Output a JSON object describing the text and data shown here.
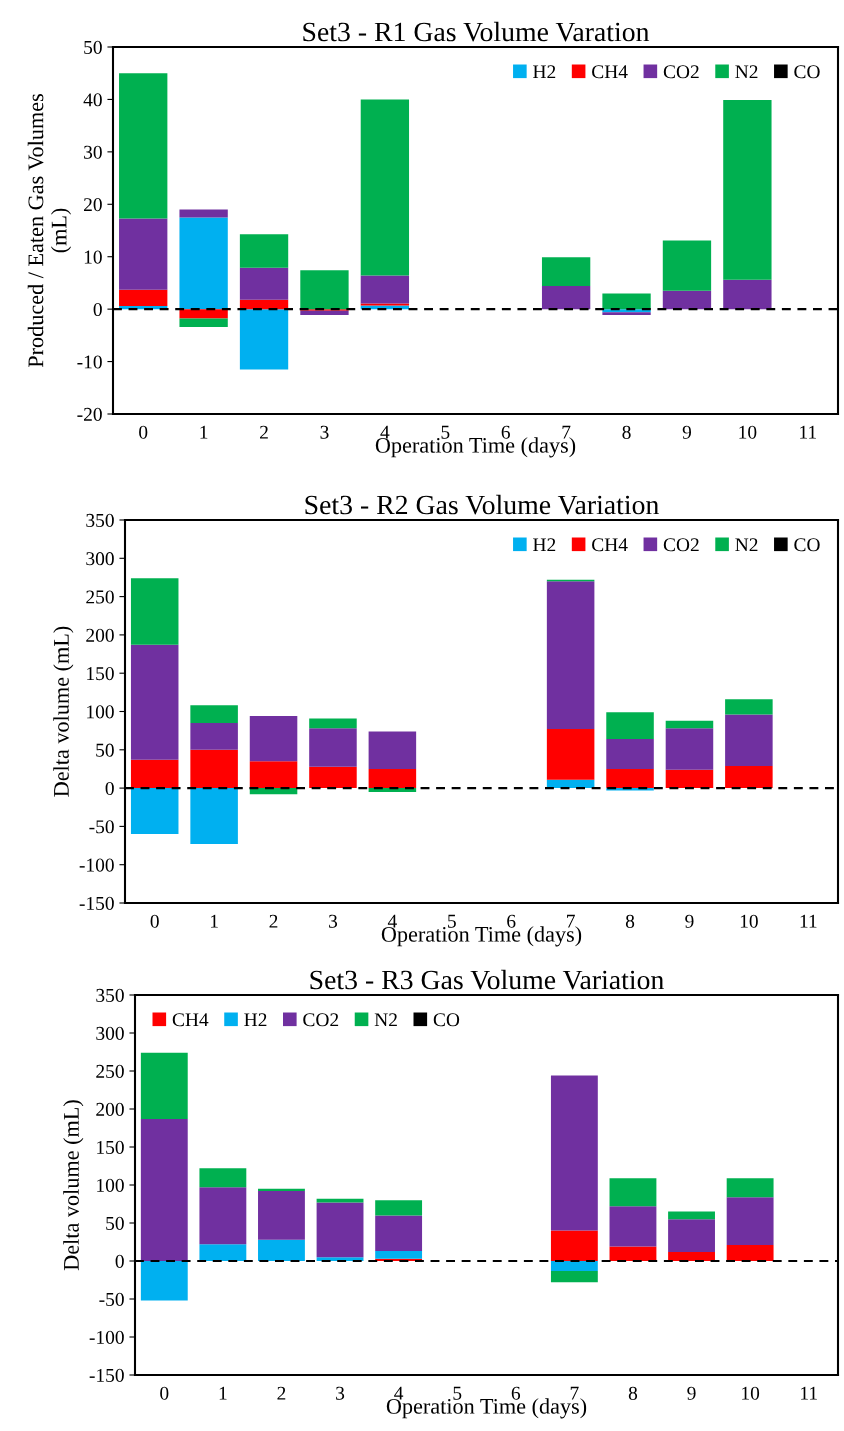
{
  "chart_data": [
    {
      "type": "bar",
      "stacked": true,
      "title": "Set3 - R1 Gas Volume Varation",
      "xlabel": "Operation Time (days)",
      "ylabel": "Produced / Eaten Gas Volumes\n(mL)",
      "categories": [
        "0",
        "1",
        "2",
        "3",
        "4",
        "5",
        "6",
        "7",
        "8",
        "9",
        "10",
        "11"
      ],
      "series": [
        {
          "name": "H2",
          "color": "#00b0f0",
          "values": [
            0.6,
            17.5,
            -11.5,
            0,
            0.7,
            null,
            null,
            0,
            -0.6,
            0,
            0,
            null
          ]
        },
        {
          "name": "CH4",
          "color": "#ff0000",
          "values": [
            3.1,
            -1.8,
            1.8,
            -0.3,
            0.4,
            null,
            null,
            null,
            0,
            null,
            null,
            null
          ]
        },
        {
          "name": "CO2",
          "color": "#7030a0",
          "values": [
            13.6,
            1.5,
            6.1,
            -0.8,
            5.3,
            null,
            null,
            4.4,
            -0.5,
            3.5,
            5.6,
            null
          ]
        },
        {
          "name": "N2",
          "color": "#00b050",
          "values": [
            27.7,
            -1.6,
            6.4,
            7.4,
            33.6,
            null,
            null,
            5.5,
            3.0,
            9.6,
            34.3,
            null
          ]
        },
        {
          "name": "CO",
          "color": "#000000",
          "values": [
            0,
            0,
            0,
            0,
            0,
            null,
            null,
            0,
            0,
            0,
            0,
            null
          ]
        }
      ],
      "ylim": [
        -20,
        50
      ],
      "yticks": [
        -20,
        -10,
        0,
        10,
        20,
        30,
        40,
        50
      ],
      "grid": false,
      "legend": "top right",
      "ref_lines": [
        {
          "axis": "y",
          "value": 0,
          "color": "#000000",
          "line_style": "dashed"
        }
      ]
    },
    {
      "type": "bar",
      "stacked": true,
      "title": "Set3 - R2 Gas Volume Variation",
      "xlabel": "Operation Time (days)",
      "ylabel": "Delta volume (mL)",
      "categories": [
        "0",
        "1",
        "2",
        "3",
        "4",
        "5",
        "6",
        "7",
        "8",
        "9",
        "10",
        "11"
      ],
      "series": [
        {
          "name": "H2",
          "color": "#00b0f0",
          "values": [
            -60,
            -73,
            0,
            null,
            0,
            null,
            null,
            11,
            -3,
            0,
            null,
            null
          ]
        },
        {
          "name": "CH4",
          "color": "#ff0000",
          "values": [
            37,
            50,
            35,
            28,
            25,
            null,
            null,
            66,
            25,
            24,
            29,
            null
          ]
        },
        {
          "name": "CO2",
          "color": "#7030a0",
          "values": [
            150,
            35,
            59,
            50,
            49,
            null,
            null,
            193,
            39,
            54,
            67,
            null
          ]
        },
        {
          "name": "N2",
          "color": "#00b050",
          "values": [
            87,
            23,
            -8,
            13,
            -5,
            null,
            null,
            2,
            35,
            10,
            20,
            null
          ]
        },
        {
          "name": "CO",
          "color": "#000000",
          "values": [
            0,
            0,
            0,
            0,
            0,
            null,
            null,
            0,
            0,
            0,
            0,
            null
          ]
        }
      ],
      "ylim": [
        -150,
        350
      ],
      "yticks": [
        -150,
        -100,
        -50,
        0,
        50,
        100,
        150,
        200,
        250,
        300,
        350
      ],
      "grid": false,
      "legend": "top right",
      "ref_lines": [
        {
          "axis": "y",
          "value": 0,
          "color": "#000000",
          "line_style": "dashed"
        }
      ]
    },
    {
      "type": "bar",
      "stacked": true,
      "title": "Set3 - R3 Gas Volume Variation",
      "xlabel": "Operation Time (days)",
      "ylabel": "Delta volume (mL)",
      "categories": [
        "0",
        "1",
        "2",
        "3",
        "4",
        "5",
        "6",
        "7",
        "8",
        "9",
        "10",
        "11"
      ],
      "series": [
        {
          "name": "CH4",
          "color": "#ff0000",
          "values": [
            0,
            0,
            0,
            0,
            3,
            null,
            null,
            40,
            19,
            12,
            21,
            null
          ]
        },
        {
          "name": "H2",
          "color": "#00b0f0",
          "values": [
            -52,
            22,
            28,
            5,
            10,
            null,
            null,
            -13,
            0,
            0,
            0,
            null
          ]
        },
        {
          "name": "CO2",
          "color": "#7030a0",
          "values": [
            187,
            75,
            64,
            72,
            47,
            null,
            null,
            204,
            53,
            43,
            63,
            null
          ]
        },
        {
          "name": "N2",
          "color": "#00b050",
          "values": [
            87,
            25,
            3,
            5,
            20,
            null,
            null,
            -15,
            37,
            10,
            25,
            null
          ]
        },
        {
          "name": "CO",
          "color": "#000000",
          "values": [
            0,
            0,
            0,
            0,
            0,
            null,
            null,
            0,
            0,
            0,
            0,
            null
          ]
        }
      ],
      "ylim": [
        -150,
        350
      ],
      "yticks": [
        -150,
        -100,
        -50,
        0,
        50,
        100,
        150,
        200,
        250,
        300,
        350
      ],
      "grid": false,
      "legend": "top left",
      "ref_lines": [
        {
          "axis": "y",
          "value": 0,
          "color": "#000000",
          "line_style": "dashed"
        }
      ]
    }
  ]
}
